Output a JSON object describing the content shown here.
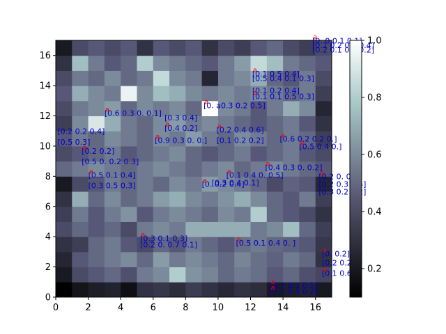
{
  "chart_data": {
    "type": "heatmap",
    "title": "",
    "xlabel": "",
    "ylabel": "",
    "xlim": [
      0,
      17
    ],
    "ylim": [
      0,
      17
    ],
    "x_ticks": [
      "0",
      "2",
      "4",
      "6",
      "8",
      "10",
      "12",
      "14",
      "16"
    ],
    "y_ticks": [
      "0",
      "2",
      "4",
      "6",
      "8",
      "10",
      "12",
      "14",
      "16"
    ],
    "colormap": "bone",
    "colorbar": {
      "range": [
        0.1,
        1.0
      ],
      "ticks": [
        "0.2",
        "0.4",
        "0.6",
        "0.8",
        "1.0"
      ],
      "tick_values": [
        0.2,
        0.4,
        0.6,
        0.8,
        1.0
      ]
    },
    "grid": false,
    "annotation_colors": {
      "text": "#0000cc",
      "marker": "#ee0000"
    },
    "z": [
      [
        0.1,
        0.18,
        0.22,
        0.24,
        0.16,
        0.3,
        0.32,
        0.28,
        0.34,
        0.3,
        0.26,
        0.3,
        0.28,
        0.2,
        0.22,
        0.24,
        0.2
      ],
      [
        0.2,
        0.4,
        0.45,
        0.5,
        0.42,
        0.55,
        0.6,
        0.8,
        0.62,
        0.58,
        0.5,
        0.55,
        0.52,
        0.45,
        0.5,
        0.42,
        0.38
      ],
      [
        0.25,
        0.45,
        0.5,
        0.55,
        0.6,
        0.5,
        0.65,
        0.55,
        0.6,
        0.55,
        0.5,
        0.58,
        0.52,
        0.48,
        0.55,
        0.5,
        0.3
      ],
      [
        0.3,
        0.35,
        0.5,
        0.55,
        0.45,
        0.4,
        0.5,
        0.45,
        0.55,
        0.5,
        0.45,
        0.52,
        0.55,
        0.5,
        0.48,
        0.45,
        0.32
      ],
      [
        0.4,
        0.5,
        0.45,
        0.5,
        0.4,
        0.55,
        0.6,
        0.55,
        0.7,
        0.7,
        0.7,
        0.7,
        0.55,
        0.6,
        0.75,
        0.5,
        0.35
      ],
      [
        0.35,
        0.55,
        0.45,
        0.55,
        0.62,
        0.45,
        0.55,
        0.6,
        0.55,
        0.5,
        0.6,
        0.55,
        0.8,
        0.5,
        0.45,
        0.4,
        0.3
      ],
      [
        0.3,
        0.7,
        0.5,
        0.6,
        0.5,
        0.55,
        0.65,
        0.7,
        0.6,
        0.55,
        0.62,
        0.7,
        0.6,
        0.5,
        0.45,
        0.55,
        0.35
      ],
      [
        0.2,
        0.4,
        0.45,
        0.55,
        0.5,
        0.55,
        0.5,
        0.6,
        0.55,
        0.65,
        0.6,
        0.55,
        0.5,
        0.4,
        0.48,
        0.45,
        0.25
      ],
      [
        0.5,
        0.55,
        0.6,
        0.55,
        0.5,
        0.55,
        0.6,
        0.55,
        0.5,
        0.55,
        0.6,
        0.5,
        0.55,
        0.6,
        0.55,
        0.5,
        0.45
      ],
      [
        0.4,
        0.45,
        0.5,
        0.55,
        0.45,
        0.5,
        0.55,
        0.6,
        0.5,
        0.45,
        0.5,
        0.55,
        0.45,
        0.5,
        0.55,
        0.45,
        0.4
      ],
      [
        0.45,
        0.55,
        0.5,
        0.6,
        0.55,
        0.5,
        0.6,
        0.55,
        0.65,
        0.55,
        0.5,
        0.6,
        0.55,
        0.5,
        0.55,
        0.5,
        0.35
      ],
      [
        0.35,
        0.6,
        0.9,
        0.7,
        0.55,
        0.5,
        0.6,
        0.65,
        0.55,
        0.6,
        0.55,
        0.5,
        0.45,
        0.5,
        0.55,
        0.45,
        0.3
      ],
      [
        0.4,
        0.55,
        0.6,
        0.65,
        0.5,
        0.6,
        0.55,
        0.6,
        0.5,
        1.0,
        0.6,
        0.55,
        0.45,
        0.55,
        0.7,
        0.6,
        0.25
      ],
      [
        0.45,
        0.7,
        0.6,
        0.55,
        0.95,
        0.6,
        0.75,
        0.7,
        0.6,
        0.55,
        0.6,
        0.55,
        0.6,
        0.55,
        0.5,
        0.55,
        0.35
      ],
      [
        0.4,
        0.55,
        0.5,
        0.6,
        0.5,
        0.55,
        0.85,
        0.6,
        0.55,
        0.25,
        0.55,
        0.6,
        0.7,
        0.5,
        0.45,
        0.55,
        0.4
      ],
      [
        0.3,
        0.75,
        0.55,
        0.45,
        0.5,
        0.8,
        0.6,
        0.55,
        0.5,
        0.45,
        0.55,
        0.65,
        0.85,
        0.75,
        0.55,
        0.5,
        0.45
      ],
      [
        0.2,
        0.4,
        0.45,
        0.4,
        0.45,
        0.3,
        0.45,
        0.4,
        0.45,
        0.3,
        0.4,
        0.35,
        0.45,
        0.5,
        0.4,
        0.35,
        0.4
      ]
    ],
    "annotations": [
      {
        "x": 9.1,
        "y": 12.5,
        "text": "[0. a0.3 0.2 0.5]",
        "marker": true
      },
      {
        "x": 15.8,
        "y": 16.8,
        "text": "[0. 0.0.1 0.1]",
        "marker": true
      },
      {
        "x": 15.8,
        "y": 16.5,
        "text": "[0.1 0.2 0.1 0.4]",
        "marker": false
      },
      {
        "x": 15.8,
        "y": 16.2,
        "text": "[0.2 0.1 0.3 0.2]",
        "marker": false
      },
      {
        "x": 12.1,
        "y": 14.6,
        "text": "[0.1 0.5 0.4]",
        "marker": true
      },
      {
        "x": 12.1,
        "y": 14.3,
        "text": "[0.5 0.4 0.1 0.3]",
        "marker": false
      },
      {
        "x": 12.1,
        "y": 13.5,
        "text": "[0.1 0.2 0.4]",
        "marker": false
      },
      {
        "x": 12.1,
        "y": 13.1,
        "text": "[0.1 0.1 0.5 0.3]",
        "marker": true
      },
      {
        "x": 3.0,
        "y": 12.0,
        "text": "[0.6 0.3 0. 0.1]",
        "marker": true
      },
      {
        "x": 6.7,
        "y": 11.7,
        "text": "[0.3 0.4]",
        "marker": false
      },
      {
        "x": 6.7,
        "y": 11.0,
        "text": "[0.4 0.2]",
        "marker": true
      },
      {
        "x": 6.1,
        "y": 10.2,
        "text": "[0.9 0.3 0. 0.]",
        "marker": true
      },
      {
        "x": 9.9,
        "y": 10.9,
        "text": "[0.2 0.4 0.6]",
        "marker": true
      },
      {
        "x": 9.9,
        "y": 10.2,
        "text": "[0.1 0.2 0.2]",
        "marker": false
      },
      {
        "x": 13.8,
        "y": 10.3,
        "text": "[0.6 0.2 0.2 0.]",
        "marker": true
      },
      {
        "x": 0.1,
        "y": 10.8,
        "text": "[0.2 0.2 0.4]",
        "marker": false
      },
      {
        "x": 0.1,
        "y": 10.1,
        "text": "[0.5 0.3]",
        "marker": false
      },
      {
        "x": 1.6,
        "y": 9.5,
        "text": "[0.2 0.2]",
        "marker": true
      },
      {
        "x": 1.6,
        "y": 8.8,
        "text": "[0.5 0. 0.2 0.3]",
        "marker": false
      },
      {
        "x": 15.0,
        "y": 9.8,
        "text": "[0.5 0.4 0.]",
        "marker": true
      },
      {
        "x": 12.9,
        "y": 8.4,
        "text": "[0.4 0.3 0. 0.2]",
        "marker": true
      },
      {
        "x": 10.5,
        "y": 7.9,
        "text": "[0.1 0.4 0. 0.5]",
        "marker": true
      },
      {
        "x": 9.6,
        "y": 7.4,
        "text": "[0.3 0.4 0.1]",
        "marker": false
      },
      {
        "x": 9.0,
        "y": 7.3,
        "text": "[0. 0.2 0.4]",
        "marker": true
      },
      {
        "x": 2.0,
        "y": 7.9,
        "text": "[0.5 0.1 0.4]",
        "marker": true
      },
      {
        "x": 2.0,
        "y": 7.2,
        "text": "[0.3 0.5 0.3]",
        "marker": false
      },
      {
        "x": 16.2,
        "y": 7.8,
        "text": "[0.2 0.   0.2]",
        "marker": true
      },
      {
        "x": 16.2,
        "y": 7.3,
        "text": "[0.2 0.3   0.4]",
        "marker": false
      },
      {
        "x": 16.2,
        "y": 6.8,
        "text": "[0.3 0.2   0.2]",
        "marker": false
      },
      {
        "x": 5.2,
        "y": 3.7,
        "text": "[0.3 0.1 0.3]",
        "marker": true
      },
      {
        "x": 5.2,
        "y": 3.3,
        "text": "[0.2 0. 0.7 0.1]",
        "marker": false
      },
      {
        "x": 11.1,
        "y": 3.4,
        "text": "[0.5 0.1 0.4 0. ]",
        "marker": true
      },
      {
        "x": 16.4,
        "y": 2.7,
        "text": "[0. 0.2]",
        "marker": true
      },
      {
        "x": 16.4,
        "y": 2.1,
        "text": "[0.2 0.2]",
        "marker": false
      },
      {
        "x": 16.4,
        "y": 1.4,
        "text": "[0.1 0.6]",
        "marker": true
      },
      {
        "x": 13.2,
        "y": 0.6,
        "text": "[0.7 0.1 0.5]",
        "marker": true
      },
      {
        "x": 13.2,
        "y": 0.2,
        "text": "[0.3 0.3 0.2]",
        "marker": true
      }
    ]
  }
}
